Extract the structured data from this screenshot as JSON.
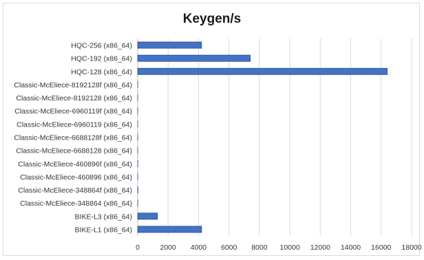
{
  "chart_data": {
    "type": "bar",
    "orientation": "horizontal",
    "title": "Keygen/s",
    "xlabel": "",
    "ylabel": "",
    "xlim": [
      0,
      18000
    ],
    "x_ticks": [
      0,
      2000,
      4000,
      6000,
      8000,
      10000,
      12000,
      14000,
      16000,
      18000
    ],
    "grid": true,
    "legend": "none",
    "bar_color": "#4472c4",
    "categories": [
      "HQC-256 (x86_64)",
      "HQC-192 (x86_64)",
      "HQC-128 (x86_64)",
      "Classic-McEliece-8192128f (x86_64)",
      "Classic-McEliece-8192128 (x86_64)",
      "Classic-McEliece-6960119f (x86_64)",
      "Classic-McEliece-6960119 (x86_64)",
      "Classic-McEliece-6688128f (x86_64)",
      "Classic-McEliece-6688128 (x86_64)",
      "Classic-McEliece-460896f (x86_64)",
      "Classic-McEliece-460896 (x86_64)",
      "Classic-McEliece-348864f (x86_64)",
      "Classic-McEliece-348864 (x86_64)",
      "BIKE-L3 (x86_64)",
      "BIKE-L1 (x86_64)"
    ],
    "values": [
      4200,
      7400,
      16400,
      5,
      2,
      5,
      2,
      5,
      2,
      8,
      3,
      15,
      8,
      1300,
      4200
    ]
  }
}
